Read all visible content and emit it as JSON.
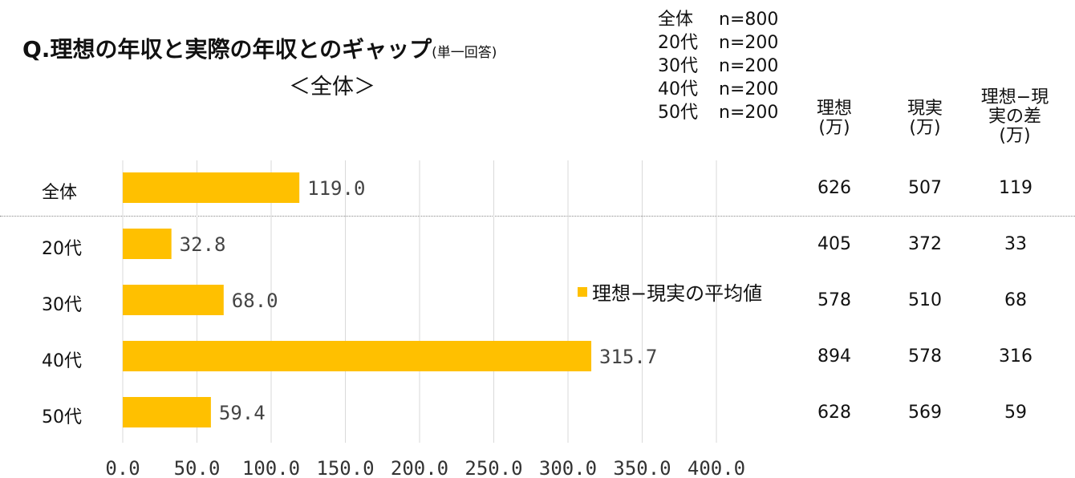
{
  "title": {
    "main": "Q.理想の年収と実際の年収とのギャップ",
    "note": "(単一回答)",
    "subtitle": "＜全体＞"
  },
  "samples": [
    {
      "group": "全体",
      "n": "n=800"
    },
    {
      "group": "20代",
      "n": "n=200"
    },
    {
      "group": "30代",
      "n": "n=200"
    },
    {
      "group": "40代",
      "n": "n=200"
    },
    {
      "group": "50代",
      "n": "n=200"
    }
  ],
  "table": {
    "headers": [
      {
        "line1": "理想",
        "line2": "(万)",
        "line3": ""
      },
      {
        "line1": "現実",
        "line2": "(万)",
        "line3": ""
      },
      {
        "line1": "理想−現",
        "line2": "実の差",
        "line3": "(万)"
      }
    ],
    "rows": [
      {
        "ideal": "626",
        "actual": "507",
        "diff": "119"
      },
      {
        "ideal": "405",
        "actual": "372",
        "diff": "33"
      },
      {
        "ideal": "578",
        "actual": "510",
        "diff": "68"
      },
      {
        "ideal": "894",
        "actual": "578",
        "diff": "316"
      },
      {
        "ideal": "628",
        "actual": "569",
        "diff": "59"
      }
    ]
  },
  "chart_data": {
    "type": "bar",
    "orientation": "horizontal",
    "categories": [
      "全体",
      "20代",
      "30代",
      "40代",
      "50代"
    ],
    "series": [
      {
        "name": "理想−現実の平均値",
        "values": [
          119.0,
          32.8,
          68.0,
          315.7,
          59.4
        ],
        "labels": [
          "119.0",
          "32.8",
          "68.0",
          "315.7",
          "59.4"
        ]
      }
    ],
    "xlim": [
      0,
      400
    ],
    "ticks": [
      {
        "value": 0,
        "label": "0.0"
      },
      {
        "value": 50,
        "label": "50.0"
      },
      {
        "value": 100,
        "label": "100.0"
      },
      {
        "value": 150,
        "label": "150.0"
      },
      {
        "value": 200,
        "label": "200.0"
      },
      {
        "value": 250,
        "label": "250.0"
      },
      {
        "value": 300,
        "label": "300.0"
      },
      {
        "value": 350,
        "label": "350.0"
      },
      {
        "value": 400,
        "label": "400.0"
      }
    ],
    "grid": true,
    "legend_position": "center-right",
    "color": "#FFC000"
  }
}
